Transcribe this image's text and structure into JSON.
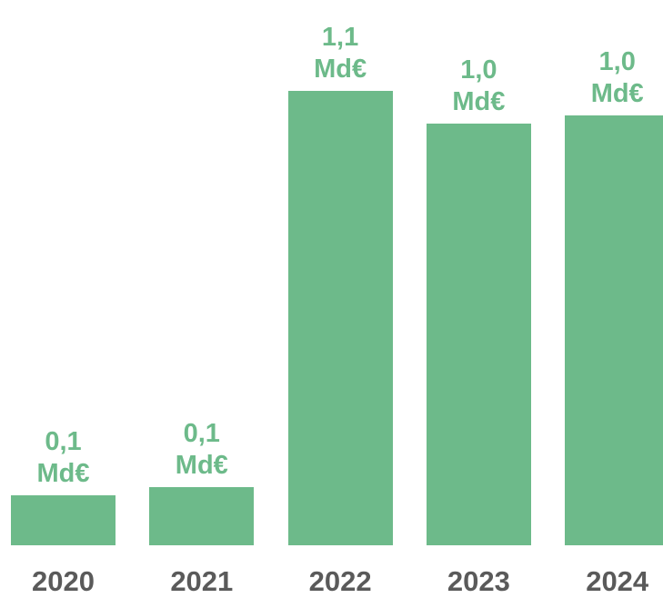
{
  "chart_data": {
    "type": "bar",
    "categories": [
      "2020",
      "2021",
      "2022",
      "2023",
      "2024"
    ],
    "values": [
      0.12,
      0.14,
      1.1,
      1.02,
      1.04
    ],
    "value_labels": [
      "0,1 Md€",
      "0,1 Md€",
      "1,1 Md€",
      "1,0 Md€",
      "1,0 Md€"
    ],
    "color": "#6dba8a",
    "ylim": [
      0,
      1.1
    ]
  }
}
